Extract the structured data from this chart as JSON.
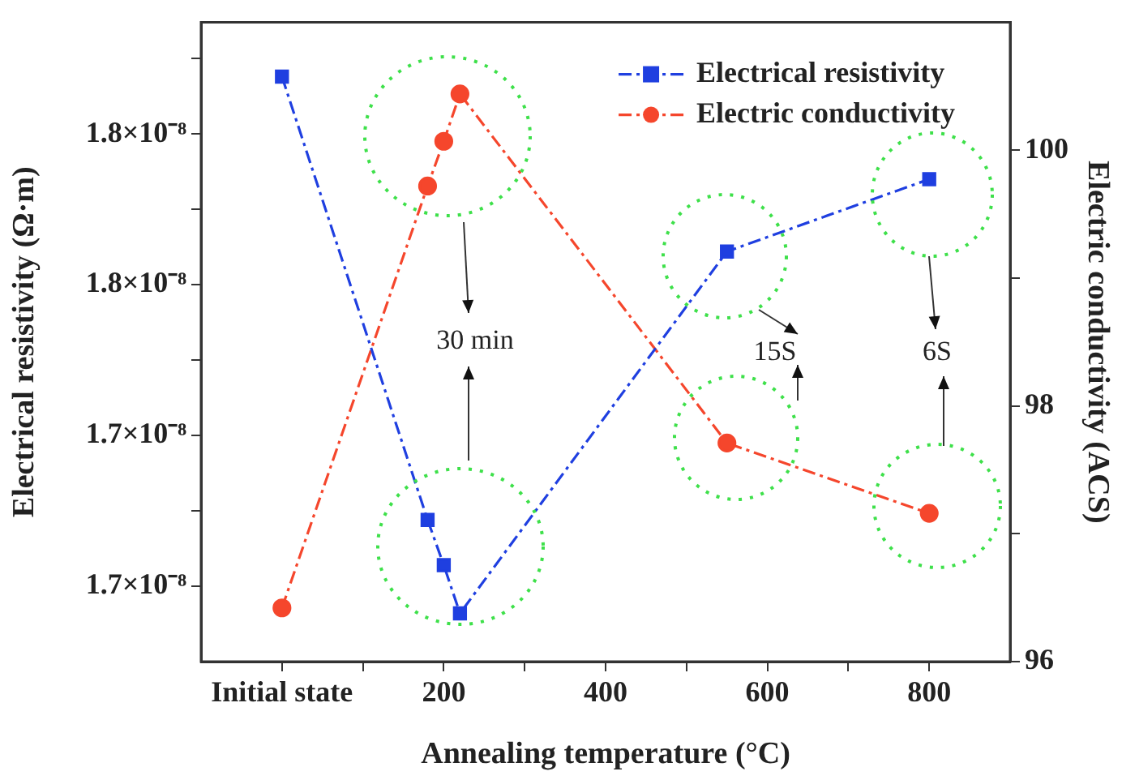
{
  "chart_data": {
    "type": "line",
    "xlabel": "Annealing temperature (°C)",
    "ylabel": "Electrical resistivity (Ω·m)",
    "y2label": "Electric conductivity (ACS)",
    "xlim": [
      -100,
      900
    ],
    "xticks": [
      {
        "value": 0,
        "label": "Initial state"
      },
      {
        "value": 100,
        "label": null
      },
      200,
      {
        "value": 300,
        "label": null
      },
      400,
      {
        "value": 500,
        "label": null
      },
      600,
      {
        "value": 700,
        "label": null
      },
      800
    ],
    "ylim": [
      1.65e-08,
      1.862e-08
    ],
    "yticks": [
      {
        "value": 1.675e-08,
        "label": "1.7×10⁻⁸"
      },
      {
        "value": 1.7e-08,
        "label": null
      },
      {
        "value": 1.725e-08,
        "label": "1.7×10⁻⁸"
      },
      {
        "value": 1.75e-08,
        "label": null
      },
      {
        "value": 1.775e-08,
        "label": "1.8×10⁻⁸"
      },
      {
        "value": 1.8e-08,
        "label": null
      },
      {
        "value": 1.825e-08,
        "label": "1.8×10⁻⁸"
      },
      {
        "value": 1.85e-08,
        "label": null
      }
    ],
    "y2lim": [
      96,
      101
    ],
    "y2ticks": [
      96,
      {
        "value": 97,
        "label": null
      },
      98,
      {
        "value": 99,
        "label": null
      },
      100
    ],
    "series": [
      {
        "name": "Electrical resistivity",
        "color": "#1f3fe0",
        "marker": "square",
        "x": [
          0,
          180,
          200,
          220,
          550,
          800
        ],
        "values": [
          1.844e-08,
          1.697e-08,
          1.682e-08,
          1.666e-08,
          1.786e-08,
          1.81e-08
        ]
      },
      {
        "name": "Electric conductivity",
        "color": "#f5462c",
        "marker": "circle",
        "axis": "y2",
        "x": [
          0,
          180,
          200,
          220,
          550,
          800
        ],
        "values": [
          96.42,
          99.72,
          100.07,
          100.44,
          97.71,
          97.16
        ]
      }
    ],
    "line_style": "dashed",
    "grid": false,
    "legend": "top right",
    "annotations": [
      "30 min",
      "15S",
      "6S"
    ]
  }
}
